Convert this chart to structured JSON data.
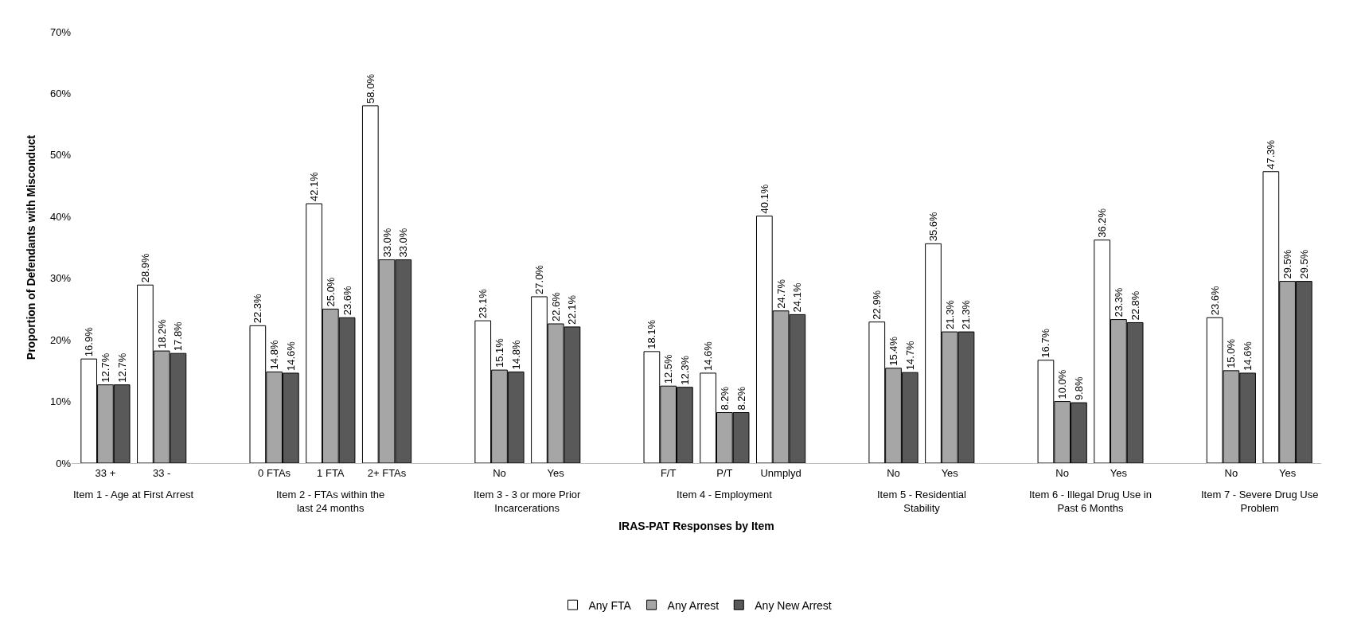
{
  "chart_data": {
    "type": "bar",
    "xlabel": "IRAS-PAT Responses by Item",
    "ylabel": "Proportion of Defendants with Misconduct",
    "categories": [
      "33 +",
      "33 -",
      null,
      "0 FTAs",
      "1 FTA",
      "2+ FTAs",
      null,
      "No",
      "Yes",
      null,
      "F/T",
      "P/T",
      "Unmplyd",
      null,
      "No",
      "Yes",
      null,
      "No",
      "Yes",
      null,
      "No",
      "Yes"
    ],
    "annotations": [
      "Item 1 - Age at First Arrest",
      "Item 2 - FTAs within the last 24 months",
      "Item 3 - 3 or more Prior Incarcerations",
      "Item 4 - Employment",
      "Item 5 - Residential Stability",
      "Item 6 - Illegal Drug Use in Past 6 Months",
      "Item 7 - Severe Drug Use Problem"
    ],
    "series": [
      {
        "name": "Any FTA",
        "color": "#ffffff",
        "values": [
          16.9,
          28.9,
          null,
          22.3,
          42.1,
          58.0,
          null,
          23.1,
          27.0,
          null,
          18.1,
          14.6,
          40.1,
          null,
          22.9,
          35.6,
          null,
          16.7,
          36.2,
          null,
          23.6,
          47.3
        ],
        "value_labels": [
          "16.9%",
          "28.9%",
          null,
          "22.3%",
          "42.1%",
          "58.0%",
          null,
          "23.1%",
          "27.0%",
          null,
          "18.1%",
          "14.6%",
          "40.1%",
          null,
          "22.9%",
          "35.6%",
          null,
          "16.7%",
          "36.2%",
          null,
          "23.6%",
          "47.3%"
        ]
      },
      {
        "name": "Any Arrest",
        "color": "#a6a6a6",
        "values": [
          12.7,
          18.2,
          null,
          14.8,
          25.0,
          33.0,
          null,
          15.1,
          22.6,
          null,
          12.5,
          8.2,
          24.7,
          null,
          15.4,
          21.3,
          null,
          10.0,
          23.3,
          null,
          15.0,
          29.5
        ],
        "value_labels": [
          "12.7%",
          "18.2%",
          null,
          "14.8%",
          "25.0%",
          "33.0%",
          null,
          "15.1%",
          "22.6%",
          null,
          "12.5%",
          "8.2%",
          "24.7%",
          null,
          "15.4%",
          "21.3%",
          null,
          "10.0%",
          "23.3%",
          null,
          "15.0%",
          "29.5%"
        ]
      },
      {
        "name": "Any New Arrest",
        "color": "#595959",
        "values": [
          12.7,
          17.8,
          null,
          14.6,
          23.6,
          33.0,
          null,
          14.8,
          22.1,
          null,
          12.3,
          8.2,
          24.1,
          null,
          14.7,
          21.3,
          null,
          9.8,
          22.8,
          null,
          14.6,
          29.5
        ],
        "value_labels": [
          "12.7%",
          "17.8%",
          null,
          "14.6%",
          "23.6%",
          "33.0%",
          null,
          "14.8%",
          "22.1%",
          null,
          "12.3%",
          "8.2%",
          "24.1%",
          null,
          "14.7%",
          "21.3%",
          null,
          "9.8%",
          "22.8%",
          null,
          "14.6%",
          "29.5%"
        ]
      }
    ],
    "ylim": [
      0,
      70
    ],
    "yticks": [
      {
        "value": 0,
        "label": "0%"
      },
      {
        "value": 10,
        "label": "10%"
      },
      {
        "value": 20,
        "label": "20%"
      },
      {
        "value": 30,
        "label": "30%"
      },
      {
        "value": 40,
        "label": "40%"
      },
      {
        "value": 50,
        "label": "50%"
      },
      {
        "value": 60,
        "label": "60%"
      },
      {
        "value": 70,
        "label": "70%"
      }
    ],
    "legend": "bottom"
  }
}
